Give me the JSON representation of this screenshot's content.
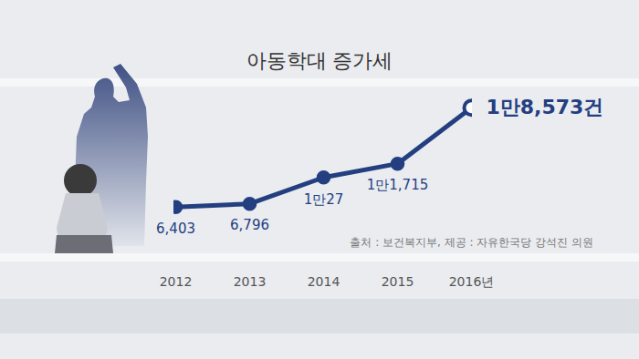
{
  "chart_data": {
    "type": "line",
    "title": "아동학대 증가세",
    "source": "출처 : 보건복지부, 제공 : 자유한국당 강석진 의원",
    "categories": [
      "2012",
      "2013",
      "2014",
      "2015",
      "2016년"
    ],
    "values": [
      6403,
      6796,
      10027,
      11715,
      18573
    ],
    "value_labels": [
      "6,403",
      "6,796",
      "1만27",
      "1만1,715",
      "1만8,573건"
    ],
    "ylim": [
      0,
      20000
    ],
    "data_labels": true,
    "tick_labels": "x",
    "color": "#233f80",
    "marker": "circle"
  }
}
